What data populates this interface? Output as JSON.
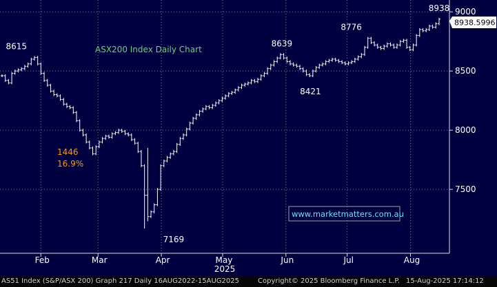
{
  "chart_data": {
    "type": "ohlc",
    "title": "ASX200 Index Daily Chart",
    "xlabel": "",
    "ylabel": "",
    "ylim": [
      6960,
      9100
    ],
    "y_ticks": [
      7500,
      8000,
      8500,
      9000
    ],
    "y_tick_labels": [
      "7500",
      "8000",
      "8500",
      "9000"
    ],
    "x_ticks": [
      {
        "label": "Feb",
        "date": "2025-02-01"
      },
      {
        "label": "Mar",
        "date": "2025-03-01"
      },
      {
        "label": "Apr",
        "date": "2025-04-01"
      },
      {
        "label": "May",
        "date": "2025-05-01"
      },
      {
        "label": "Jun",
        "date": "2025-06-01"
      },
      {
        "label": "Jul",
        "date": "2025-07-01"
      },
      {
        "label": "Aug",
        "date": "2025-08-01"
      }
    ],
    "year_label": "2025",
    "grid": true,
    "last_price": "8938.5996",
    "last_value": 8938.5996,
    "closes": [
      8460,
      8420,
      8400,
      8480,
      8500,
      8510,
      8520,
      8540,
      8560,
      8600,
      8615,
      8560,
      8480,
      8420,
      8380,
      8330,
      8300,
      8290,
      8260,
      8220,
      8200,
      8190,
      8150,
      8080,
      8000,
      7960,
      7900,
      7850,
      7800,
      7860,
      7900,
      7930,
      7950,
      7940,
      7970,
      7980,
      8000,
      7990,
      7970,
      7960,
      7920,
      7890,
      7820,
      7700,
      7450,
      7270,
      7310,
      7370,
      7500,
      7700,
      7740,
      7770,
      7800,
      7820,
      7880,
      7930,
      7960,
      8010,
      8060,
      8100,
      8130,
      8160,
      8180,
      8200,
      8190,
      8210,
      8230,
      8250,
      8270,
      8290,
      8310,
      8320,
      8340,
      8360,
      8380,
      8390,
      8400,
      8420,
      8410,
      8430,
      8460,
      8480,
      8520,
      8550,
      8580,
      8610,
      8639,
      8610,
      8580,
      8560,
      8550,
      8540,
      8520,
      8500,
      8470,
      8460,
      8500,
      8530,
      8550,
      8560,
      8580,
      8590,
      8600,
      8590,
      8580,
      8570,
      8560,
      8570,
      8580,
      8600,
      8620,
      8640,
      8700,
      8776,
      8740,
      8720,
      8700,
      8690,
      8710,
      8730,
      8720,
      8700,
      8720,
      8750,
      8760,
      8700,
      8680,
      8720,
      8800,
      8850,
      8840,
      8850,
      8880,
      8870,
      8900,
      8938
    ],
    "annotations": [
      {
        "text": "8615",
        "value": 8615,
        "date": "2025-01-20"
      },
      {
        "text": "1446",
        "note": "decline from peak"
      },
      {
        "text": "16.9%",
        "note": "decline from peak"
      },
      {
        "text": "7169",
        "value": 7169,
        "date": "2025-04-07"
      },
      {
        "text": "8639",
        "value": 8639,
        "date": "2025-05-30"
      },
      {
        "text": "8421",
        "value": 8421,
        "date": "2025-06-13"
      },
      {
        "text": "8776",
        "value": 8776,
        "date": "2025-07-03"
      },
      {
        "text": "8938",
        "value": 8938,
        "date": "2025-08-15"
      }
    ],
    "watermark": "www.marketmatters.com.au",
    "colors": {
      "background": "#000040",
      "plot_frame": "#000033",
      "grid": "#8080a0",
      "bars": "#ffffff",
      "title": "#6cd46c",
      "decline_label": "#ff9900",
      "watermark_text": "#6ae0ff",
      "watermark_border": "#a0a0a0",
      "last_price_box": "#ffffff"
    }
  },
  "footer": {
    "left": "AS51 Index (S&P/ASX 200) Graph 217  Daily 16AUG2022-15AUG2025",
    "center": "Copyright© 2025 Bloomberg Finance L.P.",
    "right": "15-Aug-2025 17:14:12"
  }
}
